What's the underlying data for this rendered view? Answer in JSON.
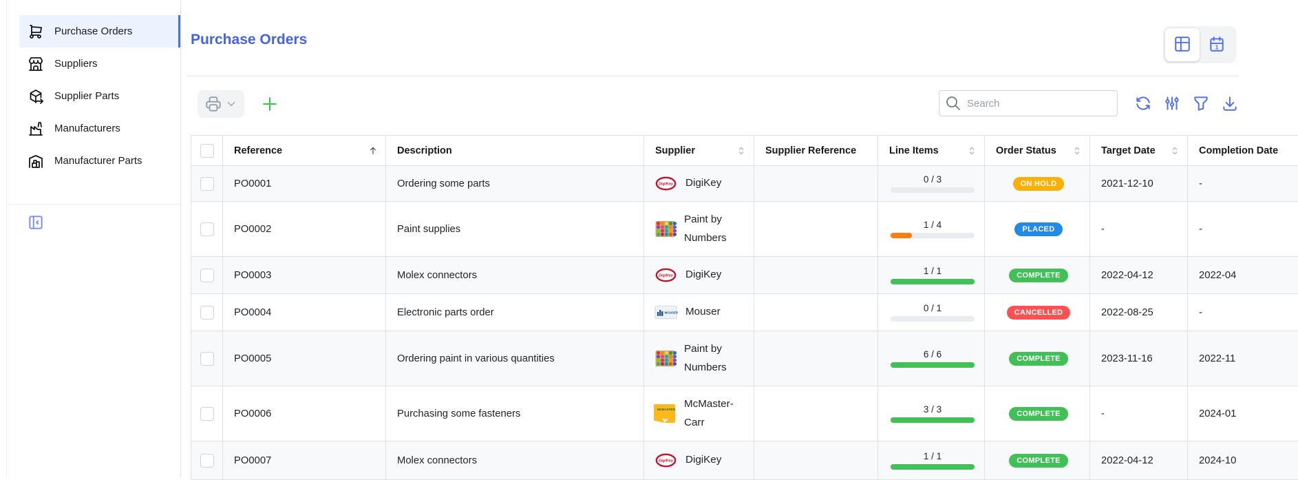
{
  "page": {
    "title": "Purchase Orders"
  },
  "colors": {
    "accent_blue": "#4263eb",
    "icon_blue": "#4c6ef5",
    "plus_green": "#40c057",
    "sidebar_active_bg": "#edf2ff",
    "row_stripe": "#f8f9fa",
    "border": "#dee2e6"
  },
  "sidebar": {
    "items": [
      {
        "label": "Purchase Orders",
        "icon": "cart",
        "active": true
      },
      {
        "label": "Suppliers",
        "icon": "store",
        "active": false
      },
      {
        "label": "Supplier Parts",
        "icon": "package-export",
        "active": false
      },
      {
        "label": "Manufacturers",
        "icon": "factory",
        "active": false
      },
      {
        "label": "Manufacturer Parts",
        "icon": "warehouse",
        "active": false
      }
    ]
  },
  "view_toggle": {
    "options": [
      {
        "name": "table-view",
        "icon": "table",
        "selected": true
      },
      {
        "name": "calendar-view",
        "icon": "calendar",
        "selected": false
      }
    ]
  },
  "toolbar": {
    "search_placeholder": "Search"
  },
  "status_colors": {
    "ON HOLD": "#fab005",
    "PLACED": "#228be6",
    "COMPLETE": "#40c057",
    "CANCELLED": "#fa5252"
  },
  "progress_colors": {
    "empty": "#e9ecef",
    "partial": "#fd7e14",
    "full": "#40c057"
  },
  "table": {
    "columns": [
      {
        "label": "",
        "type": "checkbox"
      },
      {
        "label": "Reference",
        "sort": "asc"
      },
      {
        "label": "Description",
        "sort": null
      },
      {
        "label": "Supplier",
        "sort": "updown"
      },
      {
        "label": "Supplier Reference",
        "sort": null
      },
      {
        "label": "Line Items",
        "sort": "updown"
      },
      {
        "label": "Order Status",
        "sort": "updown"
      },
      {
        "label": "Target Date",
        "sort": "updown"
      },
      {
        "label": "Completion Date",
        "sort": null
      }
    ],
    "rows": [
      {
        "reference": "PO0001",
        "description": "Ordering some parts",
        "supplier": "DigiKey",
        "supplier_logo": "digikey",
        "supplier_reference": "",
        "line_items": {
          "done": 0,
          "total": 3
        },
        "status": "ON HOLD",
        "target_date": "2021-12-10",
        "completion_date": "-"
      },
      {
        "reference": "PO0002",
        "description": "Paint supplies",
        "supplier": "Paint by Numbers",
        "supplier_logo": "paint",
        "supplier_reference": "",
        "line_items": {
          "done": 1,
          "total": 4
        },
        "status": "PLACED",
        "target_date": "-",
        "completion_date": "-"
      },
      {
        "reference": "PO0003",
        "description": "Molex connectors",
        "supplier": "DigiKey",
        "supplier_logo": "digikey",
        "supplier_reference": "",
        "line_items": {
          "done": 1,
          "total": 1
        },
        "status": "COMPLETE",
        "target_date": "2022-04-12",
        "completion_date": "2022-04"
      },
      {
        "reference": "PO0004",
        "description": "Electronic parts order",
        "supplier": "Mouser",
        "supplier_logo": "mouser",
        "supplier_reference": "",
        "line_items": {
          "done": 0,
          "total": 1
        },
        "status": "CANCELLED",
        "target_date": "2022-08-25",
        "completion_date": "-"
      },
      {
        "reference": "PO0005",
        "description": "Ordering paint in various quantities",
        "supplier": "Paint by Numbers",
        "supplier_logo": "paint",
        "supplier_reference": "",
        "line_items": {
          "done": 6,
          "total": 6
        },
        "status": "COMPLETE",
        "target_date": "2023-11-16",
        "completion_date": "2022-11"
      },
      {
        "reference": "PO0006",
        "description": "Purchasing some fasteners",
        "supplier": "McMaster-Carr",
        "supplier_logo": "mcmaster",
        "supplier_reference": "",
        "line_items": {
          "done": 3,
          "total": 3
        },
        "status": "COMPLETE",
        "target_date": "-",
        "completion_date": "2024-01"
      },
      {
        "reference": "PO0007",
        "description": "Molex connectors",
        "supplier": "DigiKey",
        "supplier_logo": "digikey",
        "supplier_reference": "",
        "line_items": {
          "done": 1,
          "total": 1
        },
        "status": "COMPLETE",
        "target_date": "2022-04-12",
        "completion_date": "2024-10"
      }
    ]
  }
}
